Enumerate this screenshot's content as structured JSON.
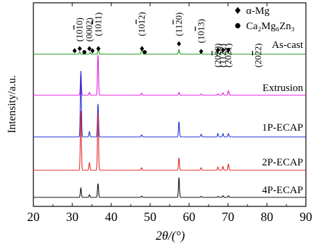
{
  "chart_data": {
    "type": "line",
    "xlabel": "2θ/(°)",
    "ylabel": "Intensity/a.u.",
    "xlim": [
      20,
      90
    ],
    "xticks": [
      20,
      30,
      40,
      50,
      60,
      70,
      80,
      90
    ],
    "grid": false,
    "legend": {
      "position": "top-right",
      "entries": [
        {
          "symbol": "diamond",
          "label": "α-Mg"
        },
        {
          "symbol": "circle",
          "label": "Ca₂Mg₆Zn₃"
        }
      ]
    },
    "series": [
      {
        "name": "As-cast",
        "color": "#1a9a1a",
        "peaks": [
          [
            31.9,
            0.06
          ],
          [
            34.6,
            0.05
          ],
          [
            36.7,
            0.16
          ],
          [
            47.9,
            0.2
          ],
          [
            57.4,
            0.12
          ],
          [
            63.1,
            0.03
          ],
          [
            67.4,
            0.03
          ],
          [
            68.7,
            0.03
          ],
          [
            70.1,
            0.03
          ]
        ]
      },
      {
        "name": "Extrusion",
        "color": "#e020e0",
        "peaks": [
          [
            32.2,
            0.55
          ],
          [
            34.4,
            0.07
          ],
          [
            36.6,
            1.0
          ],
          [
            47.8,
            0.05
          ],
          [
            57.4,
            0.07
          ],
          [
            63.1,
            0.03
          ],
          [
            67.4,
            0.03
          ],
          [
            68.7,
            0.06
          ],
          [
            70.1,
            0.11
          ]
        ]
      },
      {
        "name": "1P-ECAP",
        "color": "#1f2fd4",
        "peaks": [
          [
            32.2,
            1.0
          ],
          [
            34.4,
            0.08
          ],
          [
            36.6,
            0.5
          ],
          [
            47.8,
            0.03
          ],
          [
            57.4,
            0.23
          ],
          [
            63.1,
            0.04
          ],
          [
            67.4,
            0.05
          ],
          [
            68.7,
            0.05
          ],
          [
            70.1,
            0.05
          ]
        ]
      },
      {
        "name": "2P-ECAP",
        "color": "#e02a2a",
        "peaks": [
          [
            32.2,
            0.95
          ],
          [
            34.4,
            0.12
          ],
          [
            36.6,
            0.92
          ],
          [
            47.8,
            0.04
          ],
          [
            57.4,
            0.2
          ],
          [
            63.1,
            0.04
          ],
          [
            67.4,
            0.05
          ],
          [
            68.7,
            0.06
          ],
          [
            70.1,
            0.1
          ]
        ]
      },
      {
        "name": "4P-ECAP",
        "color": "#111111",
        "peaks": [
          [
            32.2,
            0.29
          ],
          [
            34.4,
            0.08
          ],
          [
            36.6,
            0.43
          ],
          [
            47.8,
            0.04
          ],
          [
            57.4,
            0.62
          ],
          [
            63.1,
            0.03
          ],
          [
            67.4,
            0.03
          ],
          [
            68.7,
            0.05
          ],
          [
            70.1,
            0.05
          ]
        ]
      }
    ],
    "annotations": [
      {
        "text": "(10",
        "over": "1",
        "tail": "0)",
        "x": 31.9,
        "marker": "diamond"
      },
      {
        "text": "(0002)",
        "x": 34.4,
        "marker": "diamond"
      },
      {
        "text": "(10",
        "over": "1",
        "tail": "1)",
        "x": 36.7,
        "marker": "diamond"
      },
      {
        "text": "(10",
        "over": "1",
        "tail": "2)",
        "x": 47.9,
        "marker": "diamond"
      },
      {
        "text": "(11",
        "over": "2",
        "tail": "0)",
        "x": 57.4,
        "marker": "diamond"
      },
      {
        "text": "(10",
        "over": "1",
        "tail": "3)",
        "x": 63.1,
        "marker": "diamond"
      },
      {
        "text": "(20",
        "over": "2",
        "tail": "0)",
        "x": 67.4,
        "marker": "diamond"
      },
      {
        "text": "(11",
        "over": "2",
        "tail": "2)",
        "x": 68.7,
        "marker": "diamond"
      },
      {
        "text": "(2021)",
        "x": 70.1,
        "marker": "diamond"
      },
      {
        "text": "(20",
        "over": "2",
        "tail": "2)",
        "x": 77.8,
        "marker": "none"
      }
    ],
    "phase_markers": [
      {
        "x": 30.6,
        "symbol": "diamond"
      },
      {
        "x": 33.1,
        "symbol": "circle"
      },
      {
        "x": 35.2,
        "symbol": "diamond"
      },
      {
        "x": 48.6,
        "symbol": "circle"
      }
    ]
  }
}
